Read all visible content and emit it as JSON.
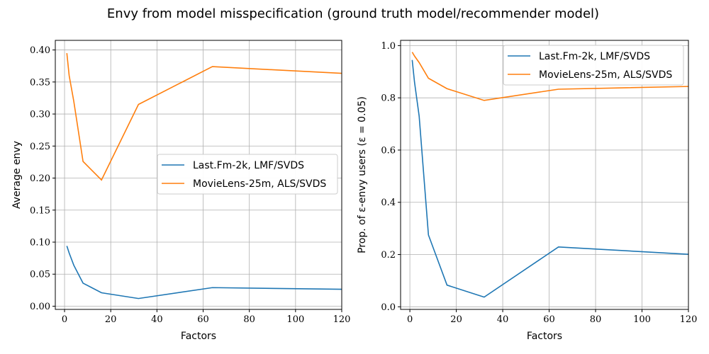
{
  "suptitle": "Envy from model misspecification (ground truth model/recommender model)",
  "chart_data": [
    {
      "type": "line",
      "xlabel": "Factors",
      "ylabel": "Average envy",
      "xlim": [
        -4,
        120
      ],
      "ylim": [
        -0.005,
        0.415
      ],
      "xticks": [
        0,
        20,
        40,
        60,
        80,
        100,
        120
      ],
      "xtick_labels": [
        "0",
        "20",
        "40",
        "60",
        "80",
        "100",
        "120"
      ],
      "yticks": [
        0.0,
        0.05,
        0.1,
        0.15,
        0.2,
        0.25,
        0.3,
        0.35,
        0.4
      ],
      "ytick_labels": [
        "0.00",
        "0.05",
        "0.10",
        "0.15",
        "0.20",
        "0.25",
        "0.30",
        "0.35",
        "0.40"
      ],
      "grid": true,
      "legend_position": "center-right",
      "x": [
        1,
        2,
        4,
        8,
        16,
        32,
        64,
        128
      ],
      "series": [
        {
          "name": "Last.Fm-2k, LMF/SVDS",
          "color": "#1f77b4",
          "values": [
            0.094,
            0.083,
            0.064,
            0.036,
            0.021,
            0.012,
            0.029,
            0.026
          ]
        },
        {
          "name": "MovieLens-25m, ALS/SVDS",
          "color": "#ff7f0e",
          "values": [
            0.395,
            0.36,
            0.32,
            0.226,
            0.197,
            0.315,
            0.374,
            0.362
          ]
        }
      ]
    },
    {
      "type": "line",
      "xlabel": "Factors",
      "ylabel": "Prop. of ε-envy users (ε = 0.05)",
      "xlim": [
        -4,
        120
      ],
      "ylim": [
        -0.01,
        1.02
      ],
      "xticks": [
        0,
        20,
        40,
        60,
        80,
        100,
        120
      ],
      "xtick_labels": [
        "0",
        "20",
        "40",
        "60",
        "80",
        "100",
        "120"
      ],
      "yticks": [
        0.0,
        0.2,
        0.4,
        0.6,
        0.8,
        1.0
      ],
      "ytick_labels": [
        "0.0",
        "0.2",
        "0.4",
        "0.6",
        "0.8",
        "1.0"
      ],
      "grid": true,
      "legend_position": "top-right",
      "x": [
        1,
        2,
        4,
        8,
        16,
        32,
        64,
        128
      ],
      "series": [
        {
          "name": "Last.Fm-2k, LMF/SVDS",
          "color": "#1f77b4",
          "values": [
            0.945,
            0.86,
            0.73,
            0.275,
            0.083,
            0.037,
            0.229,
            0.197
          ]
        },
        {
          "name": "MovieLens-25m, ALS/SVDS",
          "color": "#ff7f0e",
          "values": [
            0.975,
            0.96,
            0.935,
            0.875,
            0.835,
            0.79,
            0.833,
            0.845
          ]
        }
      ]
    }
  ]
}
